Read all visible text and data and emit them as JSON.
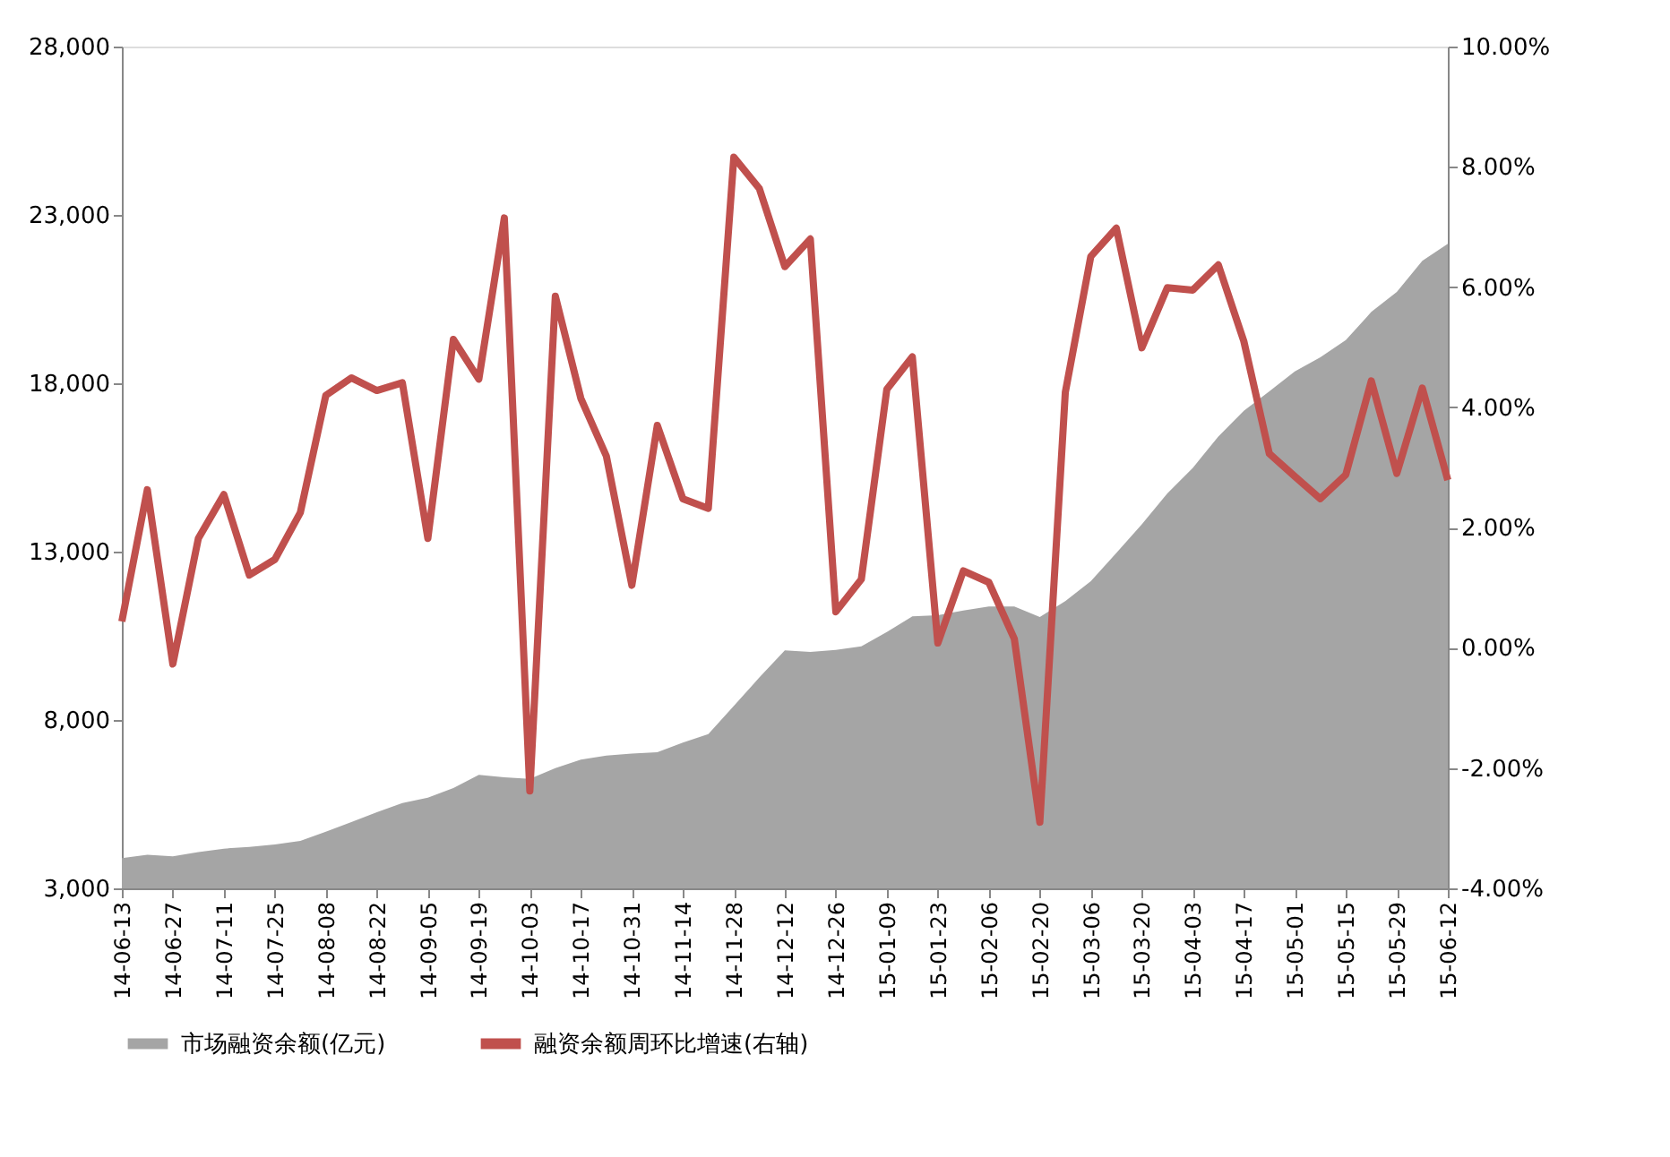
{
  "chart_data": {
    "type": "area",
    "categories": [
      "14-06-13",
      null,
      "14-06-27",
      null,
      "14-07-11",
      null,
      "14-07-25",
      null,
      "14-08-08",
      null,
      "14-08-22",
      null,
      "14-09-05",
      null,
      "14-09-19",
      null,
      "14-10-03",
      null,
      "14-10-17",
      null,
      "14-10-31",
      null,
      "14-11-14",
      null,
      "14-11-28",
      null,
      "14-12-12",
      null,
      "14-12-26",
      null,
      "15-01-09",
      null,
      "15-01-23",
      null,
      "15-02-06",
      null,
      "15-02-20",
      null,
      "15-03-06",
      null,
      "15-03-20",
      null,
      "15-04-03",
      null,
      "15-04-17",
      null,
      "15-05-01",
      null,
      "15-05-15",
      null,
      "15-05-29",
      null,
      "15-06-12"
    ],
    "series": [
      {
        "name": "市场融资余额(亿元)",
        "color": "#a5a5a5",
        "values": [
          3900,
          4000,
          3950,
          4080,
          4180,
          4230,
          4300,
          4410,
          4680,
          4970,
          5260,
          5530,
          5690,
          5980,
          6370,
          6300,
          6250,
          6570,
          6820,
          6940,
          7000,
          7040,
          7330,
          7580,
          8420,
          9260,
          10070,
          10020,
          10080,
          10190,
          10610,
          11080,
          11110,
          11250,
          11370,
          11370,
          11060,
          11530,
          12120,
          12960,
          13810,
          14730,
          15490,
          16420,
          17180,
          17760,
          18350,
          18770,
          19280,
          20120,
          20710,
          21640,
          22140
        ]
      },
      {
        "name": "融资余额周环比增速(右轴)",
        "type": "line",
        "axis": "y2",
        "color": "#c0504d",
        "values": [
          0.44,
          2.63,
          -0.27,
          1.82,
          2.55,
          1.21,
          1.47,
          2.25,
          4.2,
          4.49,
          4.28,
          4.41,
          1.82,
          5.13,
          4.47,
          7.15,
          -2.38,
          5.85,
          4.15,
          3.19,
          1.04,
          3.7,
          2.48,
          2.32,
          8.16,
          7.64,
          6.34,
          6.8,
          0.6,
          1.14,
          4.3,
          4.84,
          0.08,
          1.28,
          1.09,
          0.15,
          -2.9,
          4.25,
          6.51,
          6.98,
          4.99,
          5.99,
          5.95,
          6.37,
          5.1,
          3.23,
          2.85,
          2.48,
          2.88,
          4.44,
          2.9,
          4.32,
          2.79
        ]
      }
    ],
    "ylim": [
      3000,
      28000
    ],
    "yticks": [
      {
        "value": 3000,
        "label": "3,000"
      },
      {
        "value": 8000,
        "label": "8,000"
      },
      {
        "value": 13000,
        "label": "13,000"
      },
      {
        "value": 18000,
        "label": "18,000"
      },
      {
        "value": 23000,
        "label": "23,000"
      },
      {
        "value": 28000,
        "label": "28,000"
      }
    ],
    "y2lim": [
      -4,
      10
    ],
    "y2ticks": [
      {
        "value": -4,
        "label": "-4.00%"
      },
      {
        "value": -2,
        "label": "-2.00%"
      },
      {
        "value": 0,
        "label": "0.00%"
      },
      {
        "value": 2,
        "label": "2.00%"
      },
      {
        "value": 4,
        "label": "4.00%"
      },
      {
        "value": 6,
        "label": "6.00%"
      },
      {
        "value": 8,
        "label": "8.00%"
      },
      {
        "value": 10,
        "label": "10.00%"
      }
    ],
    "grid": false,
    "legend": "bottom",
    "marker": "none",
    "line_style": "solid"
  }
}
